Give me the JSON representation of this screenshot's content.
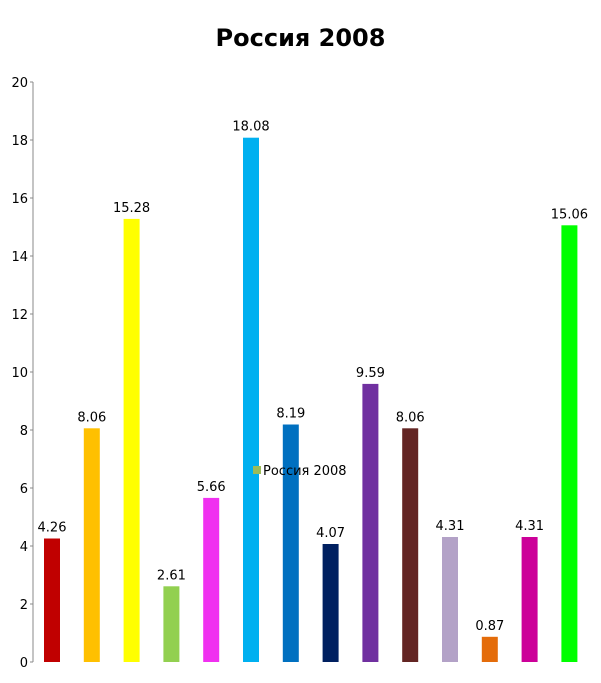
{
  "chart_data": {
    "type": "bar",
    "title": "Россия 2008",
    "xlabel": "",
    "ylabel": "",
    "ylim": [
      0,
      20
    ],
    "yticks": [
      0,
      2,
      4,
      6,
      8,
      10,
      12,
      14,
      16,
      18,
      20
    ],
    "grid": false,
    "legend": {
      "placement": "center",
      "entries": [
        "Россия 2008"
      ]
    },
    "series": [
      {
        "name": "Россия 2008",
        "values": [
          4.26,
          8.06,
          15.28,
          2.61,
          5.66,
          18.08,
          8.19,
          4.07,
          9.59,
          8.06,
          4.31,
          0.87,
          4.31,
          15.06
        ],
        "data_labels": [
          "4.26",
          "8.06",
          "15.28",
          "2.61",
          "5.66",
          "18.08",
          "8.19",
          "4.07",
          "9.59",
          "8.06",
          "4.31",
          "0.87",
          "4.31",
          "15.06"
        ],
        "colors": [
          "#c00000",
          "#ffc000",
          "#ffff00",
          "#92d050",
          "#f030f0",
          "#00b0f0",
          "#0070c0",
          "#002060",
          "#7030a0",
          "#632523",
          "#b3a2c7",
          "#e46c0a",
          "#cc0099",
          "#00ff00"
        ]
      }
    ],
    "legend_swatch_color": "#9bbb59"
  }
}
